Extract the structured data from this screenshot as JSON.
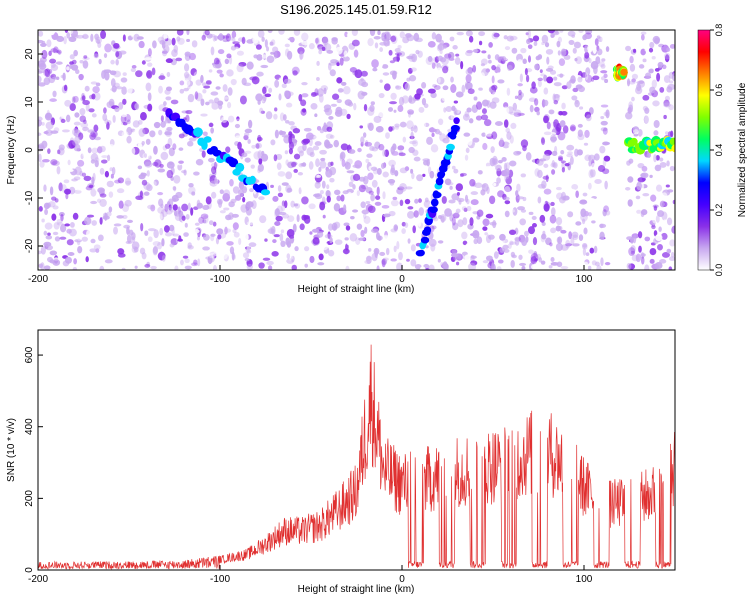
{
  "title": "S196.2025.145.01.59.R12",
  "chart_data": [
    {
      "type": "heatmap",
      "xlabel": "Height of straight line (km)",
      "ylabel": "Frequency (Hz)",
      "xlim": [
        -200,
        150
      ],
      "ylim": [
        -25,
        25
      ],
      "x_ticks": [
        -200,
        -100,
        0,
        100
      ],
      "y_ticks": [
        -20,
        -10,
        0,
        10,
        20
      ],
      "colorbar": {
        "label": "Normalized spectral amplitude",
        "range": [
          0.0,
          0.8
        ],
        "ticks": [
          "0.0",
          "0.2",
          "0.4",
          "0.6",
          "0.8"
        ],
        "colormap": [
          "#ffffff",
          "#c8a8f0",
          "#8a30e8",
          "#4400ff",
          "#0000ff",
          "#00d8ff",
          "#00ff60",
          "#80ff00",
          "#ffff00",
          "#ff8000",
          "#ff0000",
          "#ff0080"
        ]
      },
      "features": [
        {
          "x": [
            -128,
            -75
          ],
          "y": [
            8,
            -9
          ],
          "amplitude": 0.4
        },
        {
          "x": [
            10,
            30
          ],
          "y": [
            -22,
            6
          ],
          "amplitude": 0.35
        },
        {
          "x": [
            118,
            122
          ],
          "y": [
            16,
            16
          ],
          "amplitude": 0.7
        },
        {
          "x": [
            124,
            150
          ],
          "y": [
            1,
            1
          ],
          "amplitude": 0.6
        }
      ]
    },
    {
      "type": "line",
      "xlabel": "Height of straight line (km)",
      "ylabel": "SNR (10 * v/v)",
      "xlim": [
        -200,
        150
      ],
      "ylim": [
        0,
        670
      ],
      "x_ticks": [
        -200,
        -100,
        0,
        100
      ],
      "y_ticks": [
        0,
        200,
        400,
        600
      ],
      "series": [
        {
          "color": "#e03030",
          "envelope": [
            [
              -200,
              20
            ],
            [
              -150,
              22
            ],
            [
              -120,
              25
            ],
            [
              -100,
              40
            ],
            [
              -85,
              60
            ],
            [
              -75,
              100
            ],
            [
              -65,
              150
            ],
            [
              -55,
              150
            ],
            [
              -45,
              170
            ],
            [
              -35,
              230
            ],
            [
              -25,
              300
            ],
            [
              -17,
              670
            ],
            [
              -10,
              380
            ],
            [
              0,
              330
            ],
            [
              15,
              350
            ],
            [
              30,
              380
            ],
            [
              45,
              400
            ],
            [
              60,
              410
            ],
            [
              70,
              450
            ],
            [
              80,
              460
            ],
            [
              90,
              400
            ],
            [
              100,
              320
            ],
            [
              110,
              250
            ],
            [
              125,
              260
            ],
            [
              140,
              300
            ],
            [
              150,
              400
            ]
          ]
        }
      ]
    }
  ]
}
